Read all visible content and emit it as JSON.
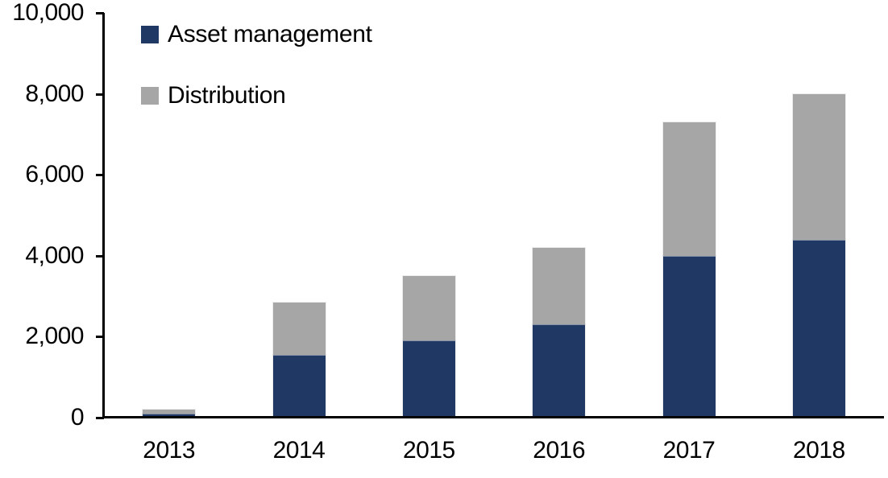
{
  "chart_data": {
    "type": "bar",
    "stacked": true,
    "title": "",
    "xlabel": "",
    "ylabel": "",
    "categories": [
      "2013",
      "2014",
      "2015",
      "2016",
      "2017",
      "2018"
    ],
    "series": [
      {
        "name": "Asset management",
        "color": "#1F3864",
        "values": [
          100,
          1550,
          1900,
          2300,
          4000,
          4400
        ]
      },
      {
        "name": "Distribution",
        "color": "#A6A6A6",
        "values": [
          100,
          1300,
          1600,
          1900,
          3300,
          3600
        ]
      }
    ],
    "stacked_totals": [
      200,
      2850,
      3500,
      4200,
      7300,
      8000
    ],
    "ylim": [
      0,
      10000
    ],
    "yticks": [
      {
        "value": 0,
        "label": "0"
      },
      {
        "value": 2000,
        "label": "2,000"
      },
      {
        "value": 4000,
        "label": "4,000"
      },
      {
        "value": 6000,
        "label": "6,000"
      },
      {
        "value": 8000,
        "label": "8,000"
      },
      {
        "value": 10000,
        "label": "10,000"
      }
    ],
    "grid": false,
    "legend_position": "top-left",
    "axis_color": "#000000",
    "text_color": "#000000",
    "background_color": "#FFFFFF"
  }
}
